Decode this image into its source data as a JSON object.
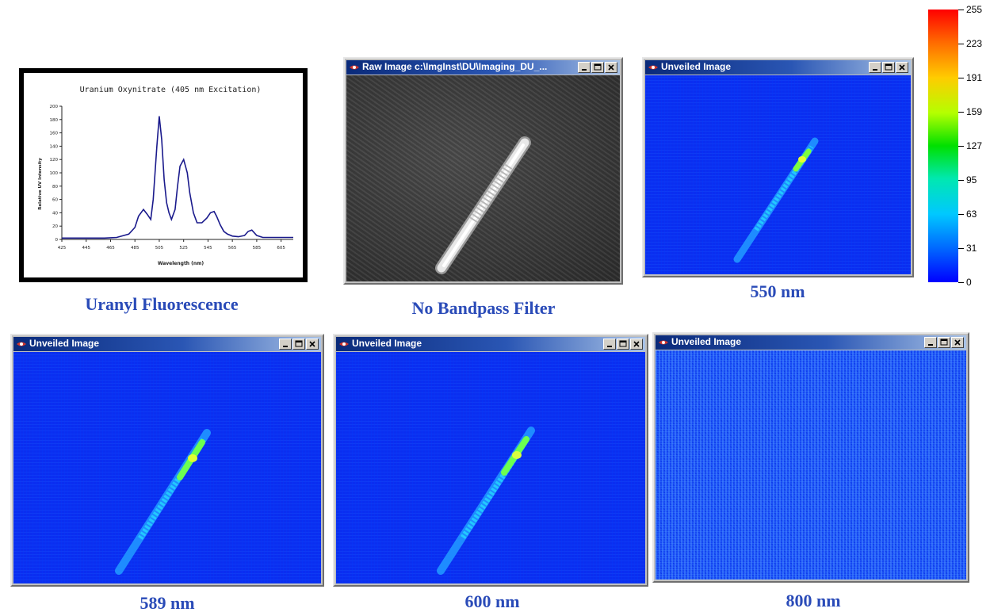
{
  "spectrum_chart": {
    "title": "Uranium Oxynitrate (405 nm Excitation)",
    "xlabel": "Wavelength (nm)",
    "ylabel": "Relative UV Intensity",
    "x_ticks": [
      "425",
      "445",
      "465",
      "485",
      "505",
      "525",
      "545",
      "565",
      "585",
      "605"
    ],
    "y_ticks": [
      "200",
      "180",
      "160",
      "140",
      "120",
      "100",
      "80",
      "60",
      "40",
      "20",
      "0"
    ]
  },
  "chart_data": {
    "type": "line",
    "title": "Uranium Oxynitrate (405 nm Excitation)",
    "xlabel": "Wavelength (nm)",
    "ylabel": "Relative UV Intensity",
    "xlim": [
      425,
      615
    ],
    "ylim": [
      0,
      200
    ],
    "x": [
      425,
      440,
      460,
      470,
      480,
      485,
      488,
      492,
      495,
      498,
      500,
      503,
      505,
      507,
      509,
      511,
      513,
      515,
      518,
      520,
      522,
      525,
      528,
      530,
      533,
      536,
      540,
      544,
      547,
      550,
      552,
      555,
      558,
      561,
      565,
      570,
      575,
      578,
      581,
      585,
      590,
      600,
      610,
      615
    ],
    "y": [
      2,
      2,
      2,
      3,
      8,
      18,
      35,
      45,
      38,
      30,
      60,
      140,
      185,
      150,
      90,
      55,
      40,
      30,
      45,
      80,
      110,
      120,
      100,
      70,
      40,
      25,
      25,
      32,
      40,
      42,
      35,
      22,
      12,
      8,
      5,
      4,
      6,
      12,
      14,
      6,
      3,
      3,
      3,
      3
    ]
  },
  "captions": {
    "uranyl": "Uranyl Fluorescence",
    "no_filter": "No Bandpass Filter",
    "nm550": "550 nm",
    "nm589": "589 nm",
    "nm600": "600 nm",
    "nm800": "800 nm"
  },
  "windows": {
    "raw": "Raw Image c:\\ImgInst\\DU\\Imaging_DU_...",
    "w550": "Unveiled Image",
    "w589": "Unveiled Image",
    "w600": "Unveiled Image",
    "w800": "Unveiled Image"
  },
  "colorbar": {
    "ticks": [
      "255",
      "223",
      "191",
      "159",
      "127",
      "95",
      "63",
      "31",
      "0"
    ]
  },
  "colors": {
    "caption": "#2a4bb8",
    "image_background": "#0a2ef0",
    "title_bar": "#0a2a7a"
  },
  "icons": [
    "app-icon",
    "minimize-icon",
    "maximize-icon",
    "close-icon"
  ]
}
